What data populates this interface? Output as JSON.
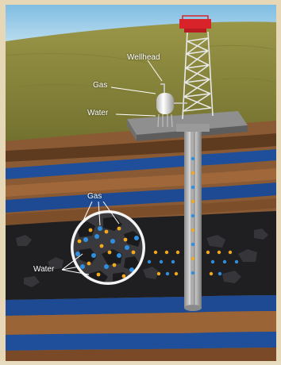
{
  "labels": {
    "wellhead": "Wellhead",
    "gas_surface": "Gas",
    "water_surface": "Water",
    "gas_detail": "Gas",
    "water_detail": "Water"
  },
  "colors": {
    "sky": "#8fc6e6",
    "grass": "#8a8a3c",
    "soil": "#8a5a34",
    "water_layer": "#1f4f9a",
    "coal": "#1e1e20",
    "gas_bubble": "#f3a91f",
    "water_bubble": "#2e8fe0",
    "derrick": "#e9e9e9",
    "derrick_top": "#d8232a"
  }
}
